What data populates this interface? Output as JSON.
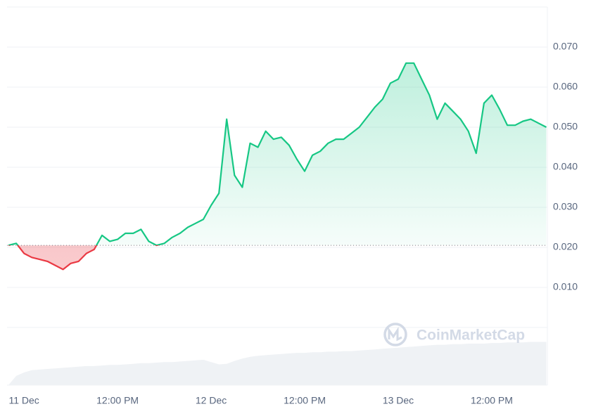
{
  "chart_data": {
    "type": "line",
    "categories": [
      null,
      null,
      "11 Dec",
      null,
      null,
      null,
      null,
      null,
      null,
      null,
      null,
      null,
      null,
      null,
      "12:00 PM",
      null,
      null,
      null,
      null,
      null,
      null,
      null,
      null,
      null,
      null,
      null,
      "12 Dec",
      null,
      null,
      null,
      null,
      null,
      null,
      null,
      null,
      null,
      null,
      null,
      "12:00 PM",
      null,
      null,
      null,
      null,
      null,
      null,
      null,
      null,
      null,
      null,
      null,
      "13 Dec",
      null,
      null,
      null,
      null,
      null,
      null,
      null,
      null,
      null,
      null,
      null,
      "12:00 PM",
      null,
      null,
      null,
      null,
      null,
      null,
      null
    ],
    "values": [
      0.0205,
      0.021,
      0.0185,
      0.0175,
      0.017,
      0.0165,
      0.0155,
      0.0145,
      0.016,
      0.0165,
      0.0185,
      0.0195,
      0.023,
      0.0215,
      0.022,
      0.0235,
      0.0235,
      0.0245,
      0.0215,
      0.0205,
      0.021,
      0.0225,
      0.0235,
      0.025,
      0.026,
      0.027,
      0.0305,
      0.0335,
      0.052,
      0.038,
      0.035,
      0.046,
      0.045,
      0.049,
      0.047,
      0.0475,
      0.0455,
      0.042,
      0.039,
      0.043,
      0.044,
      0.046,
      0.047,
      0.047,
      0.0485,
      0.05,
      0.0525,
      0.055,
      0.057,
      0.061,
      0.062,
      0.066,
      0.066,
      0.062,
      0.058,
      0.052,
      0.056,
      0.054,
      0.052,
      0.049,
      0.0435,
      0.056,
      0.058,
      0.0545,
      0.0505,
      0.0505,
      0.0515,
      0.052,
      0.051,
      0.05
    ],
    "baseline": 0.0205,
    "up_color": "#16c784",
    "down_color": "#ea3943",
    "ylim": [
      0,
      0.08
    ],
    "yticks": [
      {
        "value": 0.01,
        "label": "0.010"
      },
      {
        "value": 0.02,
        "label": "0.020"
      },
      {
        "value": 0.03,
        "label": "0.030"
      },
      {
        "value": 0.04,
        "label": "0.040"
      },
      {
        "value": 0.05,
        "label": "0.050"
      },
      {
        "value": 0.06,
        "label": "0.060"
      },
      {
        "value": 0.07,
        "label": "0.070"
      }
    ],
    "grid": true,
    "volume": {
      "color": "#eff2f5",
      "ylim": [
        0,
        100
      ],
      "values": [
        0,
        16,
        22,
        26,
        27,
        28,
        29,
        30,
        31,
        32,
        33,
        33,
        34,
        35,
        35,
        36,
        37,
        38,
        38,
        39,
        40,
        40,
        41,
        42,
        43,
        44,
        40,
        36,
        37,
        42,
        46,
        49,
        51,
        52,
        53,
        54,
        55,
        56,
        56,
        57,
        57,
        58,
        58,
        59,
        59,
        60,
        61,
        62,
        63,
        64,
        65,
        66,
        67,
        68,
        69,
        70,
        70,
        71,
        71,
        72,
        72,
        72,
        73,
        73,
        74,
        74,
        74,
        75,
        75,
        75
      ]
    },
    "watermark": "CoinMarketCap"
  }
}
